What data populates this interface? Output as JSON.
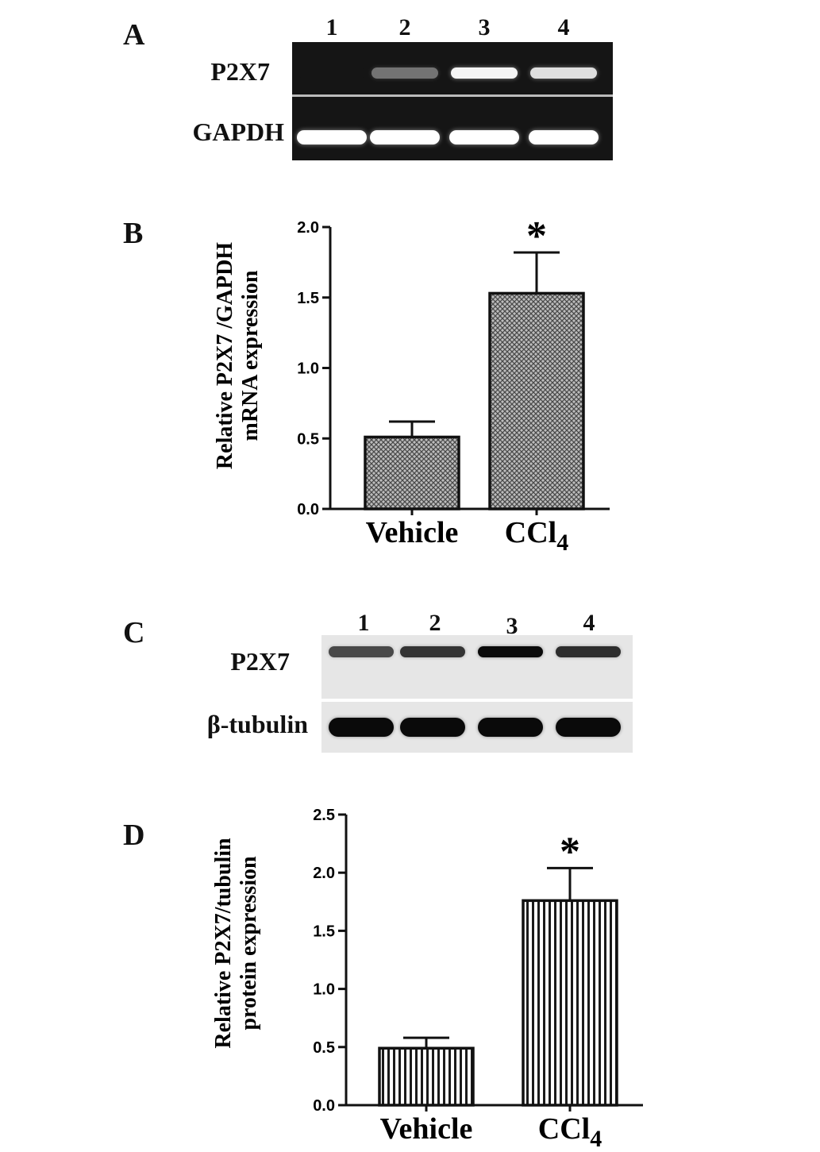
{
  "panels": {
    "a": {
      "letter": "A",
      "lanes": [
        "1",
        "2",
        "3",
        "4"
      ],
      "rows": [
        "P2X7",
        "GAPDH"
      ],
      "p2x7_intensity": [
        0.0,
        0.35,
        0.95,
        0.85
      ],
      "gapdh_intensity": [
        1,
        1,
        1,
        1
      ]
    },
    "b": {
      "letter": "B"
    },
    "c": {
      "letter": "C",
      "lanes": [
        "1",
        "2",
        "3",
        "4"
      ],
      "rows": [
        "P2X7",
        "β-tubulin"
      ],
      "p2x7_intensity": [
        0.55,
        0.7,
        1.0,
        0.75
      ],
      "tubulin_intensity": [
        1,
        1,
        1,
        1
      ]
    },
    "d": {
      "letter": "D"
    }
  },
  "chart_data": [
    {
      "type": "bar",
      "categories": [
        "Vehicle",
        "CCl4"
      ],
      "category_display": [
        {
          "main": "Vehicle",
          "sub": ""
        },
        {
          "main": "CCl",
          "sub": "4"
        }
      ],
      "values": [
        0.51,
        1.53
      ],
      "errors": [
        0.11,
        0.29
      ],
      "significance": [
        "",
        "*"
      ],
      "ylabel_lines": [
        "Relative P2X7 /GAPDH",
        "mRNA expression"
      ],
      "xlabel": "",
      "ylim": [
        0,
        2.0
      ],
      "yticks": [
        "0.0",
        "0.5",
        "1.0",
        "1.5",
        "2.0"
      ],
      "pattern": "crosshatch"
    },
    {
      "type": "bar",
      "categories": [
        "Vehicle",
        "CCl4"
      ],
      "category_display": [
        {
          "main": "Vehicle",
          "sub": ""
        },
        {
          "main": "CCl",
          "sub": "4"
        }
      ],
      "values": [
        0.49,
        1.76
      ],
      "errors": [
        0.09,
        0.28
      ],
      "significance": [
        "",
        "*"
      ],
      "ylabel_lines": [
        "Relative P2X7/tubulin",
        "protein expression"
      ],
      "xlabel": "",
      "ylim": [
        0,
        2.5
      ],
      "yticks": [
        "0.0",
        "0.5",
        "1.0",
        "1.5",
        "2.0",
        "2.5"
      ],
      "pattern": "vertical-stripes"
    }
  ]
}
